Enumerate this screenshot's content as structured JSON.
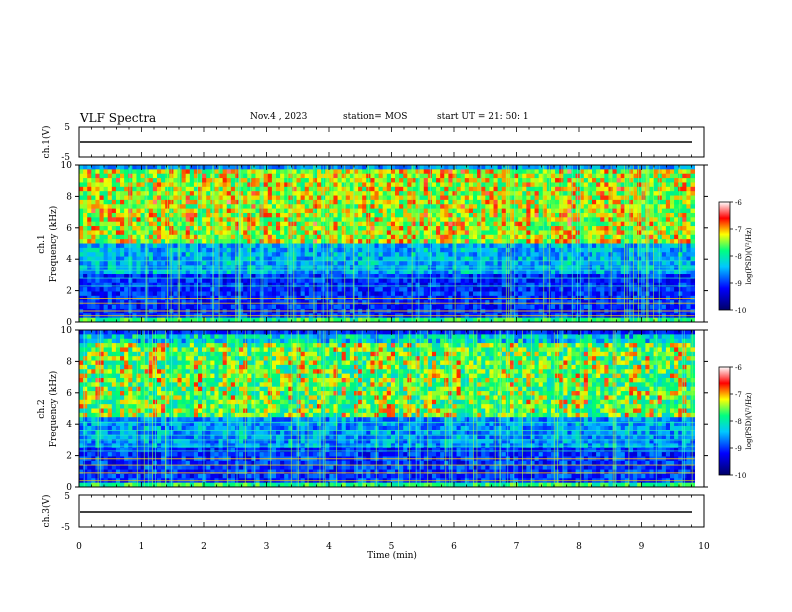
{
  "header": {
    "title": "VLF Spectra",
    "date": "Nov.4 , 2023",
    "station": "station= MOS",
    "start_ut": "start UT = 21: 50: 1"
  },
  "colors": {
    "colormap": [
      "#000066",
      "#0000ff",
      "#00c8ff",
      "#00ff80",
      "#ffff00",
      "#ff0000",
      "#ffffff"
    ],
    "background_band": "#000033"
  },
  "chart_data": [
    {
      "type": "line",
      "ylabel": "ch.1(V)",
      "ylim": [
        -5,
        5
      ],
      "yticks": [
        "5",
        "-5"
      ],
      "xlim": [
        0,
        10
      ],
      "series": [
        {
          "values_x": [
            0,
            9.85
          ],
          "values_y": [
            0,
            0
          ]
        }
      ]
    },
    {
      "type": "heatmap",
      "ylabel_line1": "ch.1",
      "ylabel_line2": "Frequency (kHz)",
      "ylim": [
        0,
        10
      ],
      "yticks": [
        "0",
        "2",
        "4",
        "6",
        "8",
        "10"
      ],
      "xlim": [
        0,
        10
      ],
      "data_end_min": 9.85,
      "colorbar": {
        "range": [
          -10,
          -6
        ],
        "ticks": [
          "-6",
          "-7",
          "-8",
          "-9",
          "-10"
        ],
        "label": "log(PSD)(V²/Hz)"
      }
    },
    {
      "type": "heatmap",
      "ylabel_line1": "ch.2",
      "ylabel_line2": "Frequency (kHz)",
      "ylim": [
        0,
        10
      ],
      "yticks": [
        "0",
        "2",
        "4",
        "6",
        "8",
        "10"
      ],
      "xlim": [
        0,
        10
      ],
      "data_end_min": 9.85,
      "colorbar": {
        "range": [
          -10,
          -6
        ],
        "ticks": [
          "-6",
          "-7",
          "-8",
          "-9",
          "-10"
        ],
        "label": "log(PSD)(V²/Hz)"
      }
    },
    {
      "type": "line",
      "ylabel": "ch.3(V)",
      "ylim": [
        -5,
        5
      ],
      "yticks": [
        "5",
        "-5"
      ],
      "xlim": [
        0,
        10
      ],
      "series": [
        {
          "values_x": [
            0,
            9.85
          ],
          "values_y": [
            0,
            0
          ]
        }
      ]
    }
  ],
  "xaxis": {
    "label": "Time (min)",
    "ticks": [
      "0",
      "1",
      "2",
      "3",
      "4",
      "5",
      "6",
      "7",
      "8",
      "9",
      "10"
    ]
  }
}
